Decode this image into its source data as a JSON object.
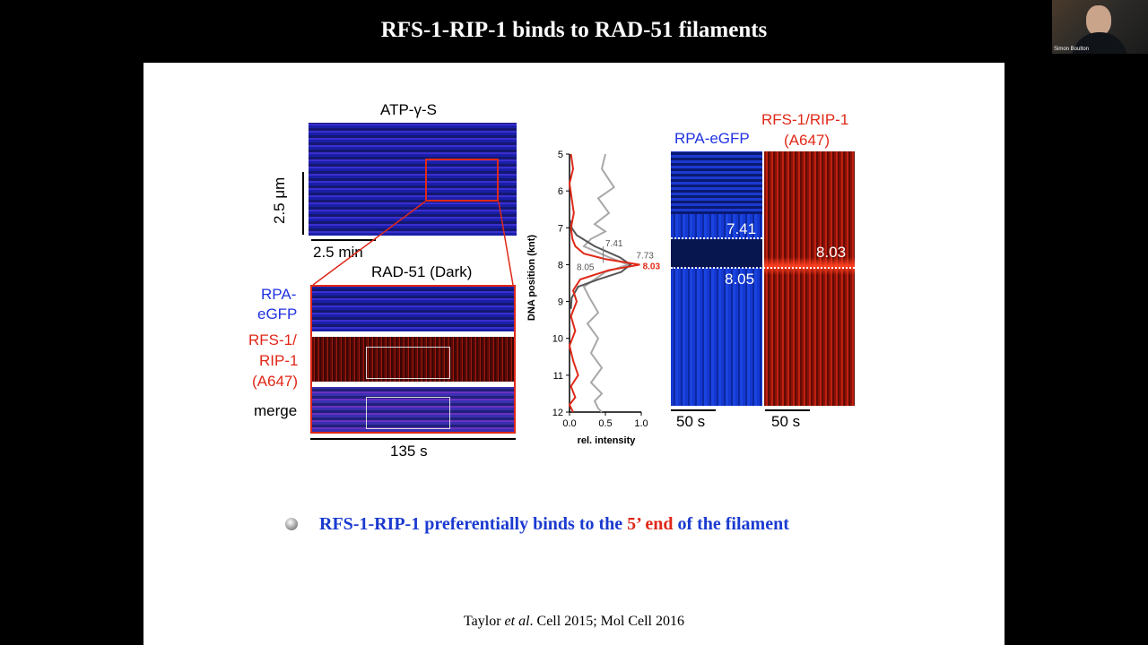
{
  "title": "RFS-1-RIP-1 binds to RAD-51 filaments",
  "webcam": {
    "name": "Simon Boulton"
  },
  "left_panel": {
    "top_label": "ATP-γ-S",
    "scale_y": "2.5 μm",
    "scale_x": "2.5 min",
    "zoom_title": "RAD-51 (Dark)",
    "row_rpa_line1": "RPA-",
    "row_rpa_line2": "eGFP",
    "row_rfs_line1": "RFS-1/",
    "row_rfs_line2": "RIP-1",
    "row_rfs_line3": "(A647)",
    "row_merge": "merge",
    "time_label": "135 s"
  },
  "chart_data": {
    "type": "line",
    "xlabel": "rel. intensity",
    "ylabel": "DNA position (knt)",
    "xlim": [
      0.0,
      1.0
    ],
    "xticks": [
      "0.0",
      "0.5",
      "1.0"
    ],
    "ylim": [
      5,
      12
    ],
    "yticks": [
      "5",
      "6",
      "7",
      "8",
      "9",
      "10",
      "11",
      "12"
    ],
    "series": [
      {
        "color": "#a8a8a8",
        "x": [
          0.5,
          0.45,
          0.62,
          0.4,
          0.55,
          0.35,
          0.5,
          0.3,
          0.2,
          0.55,
          0.82,
          0.5,
          0.2,
          0.28,
          0.4,
          0.25,
          0.4,
          0.3,
          0.45,
          0.3,
          0.45,
          0.35,
          0.4,
          0.45
        ],
        "y": [
          5,
          5.4,
          5.9,
          6.2,
          6.6,
          6.9,
          7.1,
          7.3,
          7.5,
          7.8,
          8.0,
          8.2,
          8.6,
          8.9,
          9.3,
          9.6,
          10.0,
          10.4,
          10.8,
          11.2,
          11.5,
          11.7,
          11.9,
          12
        ]
      },
      {
        "color": "#555555",
        "x": [
          0.02,
          0.03,
          0.1,
          0.35,
          0.7,
          0.85,
          0.72,
          0.4,
          0.12,
          0.03,
          0.02
        ],
        "y": [
          6.8,
          7.0,
          7.2,
          7.5,
          7.8,
          8.0,
          8.2,
          8.4,
          8.6,
          8.9,
          9.2
        ]
      },
      {
        "color": "#e02818",
        "x": [
          0.02,
          0.05,
          0.0,
          0.03,
          0.06,
          0.02,
          0.04,
          0.08,
          0.2,
          0.5,
          0.98,
          0.55,
          0.15,
          0.05,
          0.1,
          0.02,
          0.08,
          0.0,
          0.05,
          0.12,
          0.02,
          0.08,
          0.0,
          0.05
        ],
        "y": [
          5,
          5.4,
          5.8,
          6.2,
          6.6,
          7.0,
          7.3,
          7.5,
          7.7,
          7.85,
          8.0,
          8.15,
          8.4,
          8.7,
          9.0,
          9.4,
          9.8,
          10.2,
          10.6,
          11.0,
          11.3,
          11.6,
          11.8,
          12
        ]
      }
    ],
    "annotations": [
      {
        "text": "7.41",
        "color": "#555555"
      },
      {
        "text": "7.73",
        "color": "#555555"
      },
      {
        "text": "8.05",
        "color": "#555555"
      },
      {
        "text": "8.03",
        "color": "#e02818"
      }
    ]
  },
  "right_panel": {
    "rpa_label": "RPA-eGFP",
    "rfs_line1": "RFS-1/RIP-1",
    "rfs_line2": "(A647)",
    "mark_741": "7.41",
    "mark_805": "8.05",
    "mark_803": "8.03",
    "scale_left": "50 s",
    "scale_right": "50 s"
  },
  "conclusion": {
    "part1": "RFS-1-RIP-1 preferentially binds to the ",
    "highlight": "5’ end",
    "part2": " of the filament"
  },
  "citation": {
    "author": "Taylor ",
    "etal": "et al",
    "rest": ". Cell 2015; Mol Cell 2016"
  },
  "colors": {
    "accent_blue": "#1a3ad0",
    "accent_red": "#e02818",
    "slide_bg": "#ffffff",
    "frame_bg": "#000000"
  }
}
